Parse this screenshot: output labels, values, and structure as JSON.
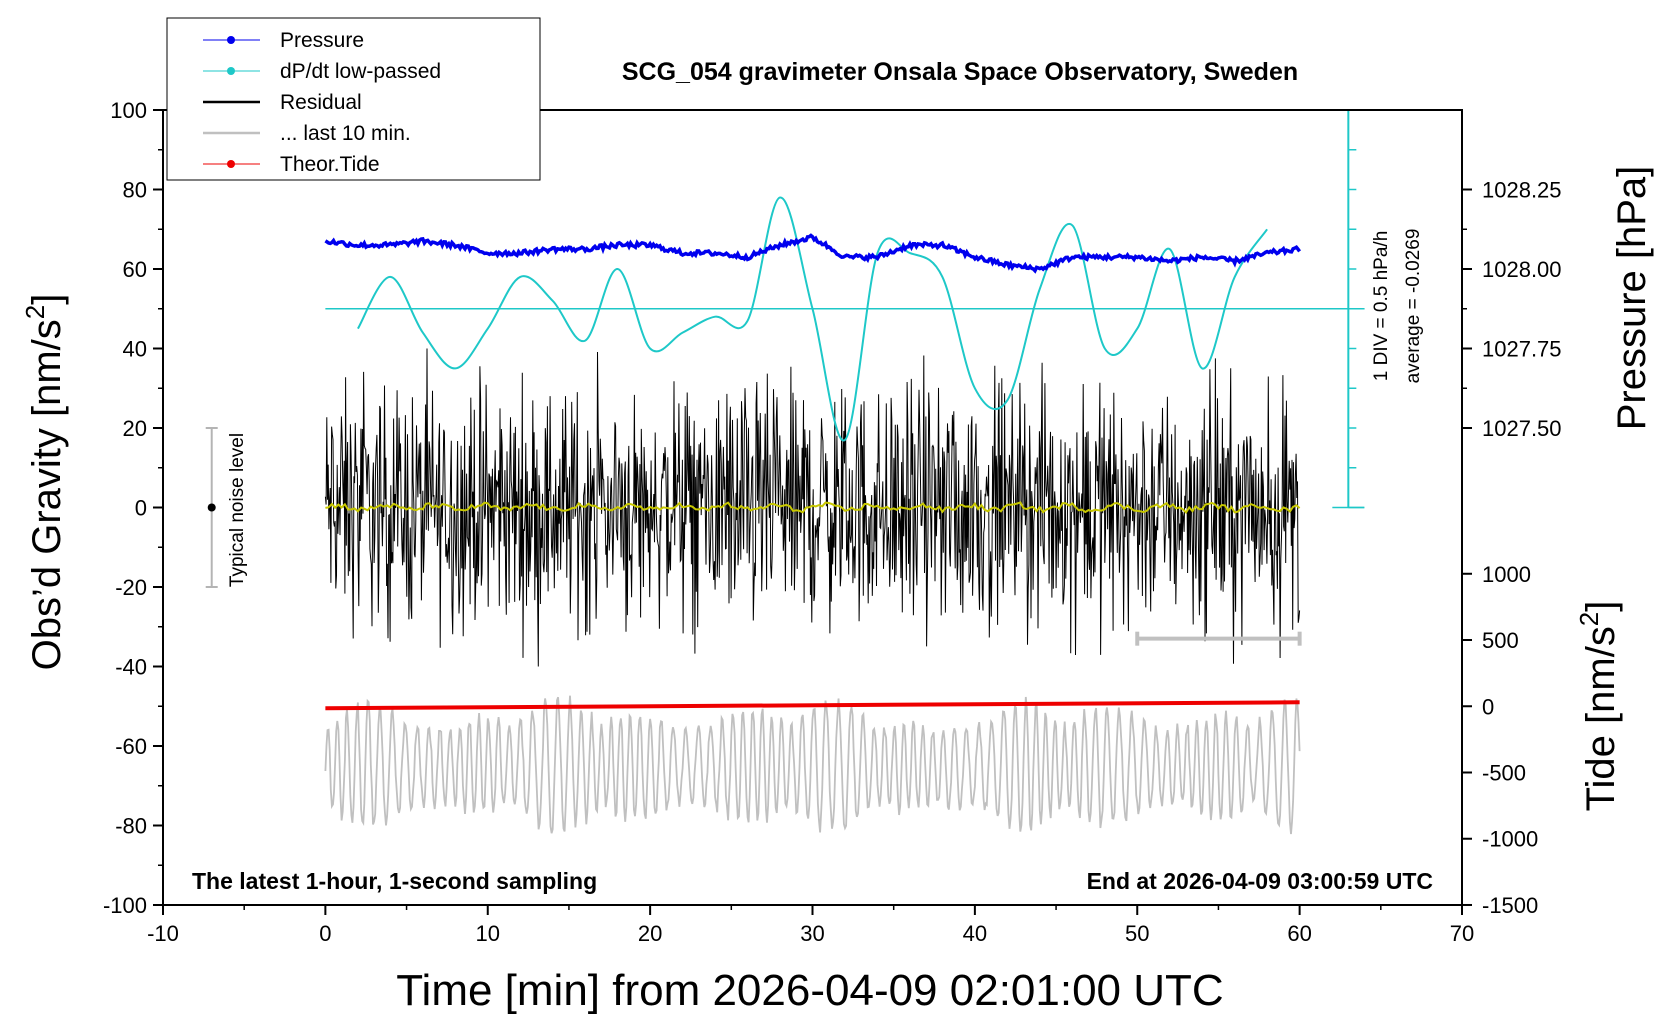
{
  "chart_data": {
    "type": "line",
    "title": "SCG_054 gravimeter Onsala Space Observatory, Sweden",
    "xlabel": "Time [min] from 2026-04-09 02:01:00 UTC",
    "ylabel_left": "Obs’d Gravity [nm/s²]",
    "ylabel_left_main": "Obs’d Gravity [nm/s",
    "ylabel_left_sup": "2",
    "ylabel_left_end": "]",
    "ylabel_right_top": "Pressure [hPa]",
    "ylabel_right_bottom_main": "Tide [nm/s",
    "ylabel_right_bottom_sup": "2",
    "ylabel_right_bottom_end": "]",
    "xlim": [
      -10,
      70
    ],
    "ylim": [
      -100,
      100
    ],
    "x_ticks": [
      "-10",
      "0",
      "10",
      "20",
      "30",
      "40",
      "50",
      "60",
      "70"
    ],
    "x_tick_values": [
      -10,
      0,
      10,
      20,
      30,
      40,
      50,
      60,
      70
    ],
    "y_ticks": [
      "100",
      "80",
      "60",
      "40",
      "20",
      "0",
      "-20",
      "-40",
      "-60",
      "-80",
      "-100"
    ],
    "y_tick_values": [
      100,
      80,
      60,
      40,
      20,
      0,
      -20,
      -40,
      -60,
      -80,
      -100
    ],
    "pressure_axis": {
      "ticks": [
        "1028.25",
        "1028.00",
        "1027.75",
        "1027.50"
      ],
      "tick_values": [
        1028.25,
        1028.0,
        1027.75,
        1027.5
      ],
      "gravity_equiv_at_1028": 60,
      "units_per_hpa": 80
    },
    "tide_axis": {
      "ticks": [
        "1000",
        "500",
        "0",
        "-500",
        "-1000",
        "-1500"
      ],
      "tick_values": [
        1000,
        500,
        0,
        -500,
        -1000,
        -1500
      ],
      "gravity_equiv_at_0": -50,
      "units_per_nms2": 0.03333
    },
    "dpdt_scale": {
      "label_div": "1 DIV = 0.5 hPa/h",
      "label_avg": "average = -0.0269"
    },
    "noise_label": "Typical noise level",
    "annotation_left": "The latest 1-hour, 1-second sampling",
    "annotation_right": "End at 2026-04-09 03:00:59 UTC",
    "legend": {
      "position": "top-left",
      "entries": [
        {
          "label": "Pressure",
          "color": "#0000ee",
          "style": "line-dot"
        },
        {
          "label": "dP/dt low-passed",
          "color": "#1ec8c8",
          "style": "line-dot"
        },
        {
          "label": "Residual",
          "color": "#000000",
          "style": "line"
        },
        {
          "label": "... last 10 min.",
          "color": "#c0c0c0",
          "style": "line"
        },
        {
          "label": "Theor.Tide",
          "color": "#ee0000",
          "style": "line-dot"
        }
      ]
    },
    "series": [
      {
        "name": "Pressure",
        "color": "#0000ee",
        "x": [
          0,
          2,
          4,
          6,
          8,
          10,
          12,
          14,
          16,
          18,
          20,
          22,
          24,
          26,
          28,
          30,
          32,
          34,
          36,
          38,
          40,
          42,
          44,
          46,
          48,
          50,
          52,
          54,
          56,
          58,
          60
        ],
        "y": [
          67,
          66,
          66,
          67,
          66,
          64,
          64,
          65,
          65,
          66,
          66,
          64,
          64,
          63,
          66,
          68,
          63,
          63,
          66,
          66,
          63,
          61,
          60,
          63,
          63,
          63,
          62,
          63,
          62,
          64,
          65
        ]
      },
      {
        "name": "dP/dt low-passed",
        "color": "#1ec8c8",
        "x": [
          2,
          4,
          6,
          8,
          10,
          12,
          14,
          16,
          18,
          20,
          22,
          24,
          26,
          28,
          30,
          32,
          34,
          36,
          38,
          40,
          42,
          44,
          46,
          48,
          50,
          52,
          54,
          56,
          58
        ],
        "y": [
          45,
          58,
          44,
          35,
          45,
          58,
          52,
          42,
          60,
          40,
          44,
          48,
          47,
          78,
          50,
          17,
          64,
          64,
          58,
          30,
          27,
          55,
          71,
          40,
          45,
          65,
          35,
          58,
          70
        ]
      },
      {
        "name": "Residual",
        "color": "#000000",
        "x_range": [
          0,
          60
        ],
        "amplitude": 22
      },
      {
        "name": "Theor.Tide",
        "color": "#ee0000",
        "x": [
          0,
          60
        ],
        "y": [
          -50.5,
          -49
        ]
      },
      {
        "name": "... last 10 min.",
        "color": "#c0c0c0",
        "x_range": [
          0,
          60
        ],
        "center": -65,
        "amplitude": 17
      }
    ],
    "dpdt_zero_level": 50,
    "residual_smooth_color": "#c8c800",
    "noise_bar": {
      "x": -7,
      "y_min": -20,
      "y_max": 20,
      "center": 0
    },
    "last10_bar": {
      "x_range": [
        50,
        60
      ],
      "y": -33
    }
  }
}
